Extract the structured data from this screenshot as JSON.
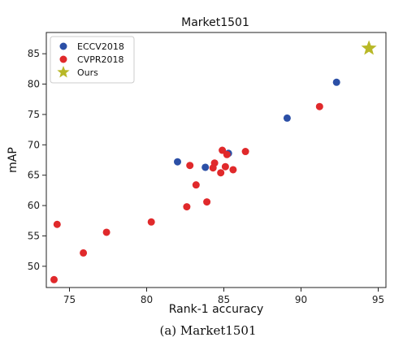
{
  "chart_data": {
    "type": "scatter",
    "title": "Market1501",
    "xlabel": "Rank-1 accuracy",
    "ylabel": "mAP",
    "xlim": [
      73.5,
      95.5
    ],
    "ylim": [
      46.5,
      88.5
    ],
    "xticks": [
      75,
      80,
      85,
      90,
      95
    ],
    "yticks": [
      50,
      55,
      60,
      65,
      70,
      75,
      80,
      85
    ],
    "grid": false,
    "legend_position": "top-left",
    "series": [
      {
        "name": "ECCV2018",
        "marker": "circle",
        "color": "#2b4fa6",
        "points": [
          [
            82.0,
            67.2
          ],
          [
            83.8,
            66.3
          ],
          [
            85.3,
            68.6
          ],
          [
            89.1,
            74.4
          ],
          [
            92.3,
            80.3
          ]
        ]
      },
      {
        "name": "CVPR2018",
        "marker": "circle",
        "color": "#e0292b",
        "points": [
          [
            74.0,
            47.8
          ],
          [
            74.2,
            56.9
          ],
          [
            75.9,
            52.2
          ],
          [
            77.4,
            55.6
          ],
          [
            80.3,
            57.3
          ],
          [
            82.6,
            59.8
          ],
          [
            82.8,
            66.6
          ],
          [
            83.2,
            63.4
          ],
          [
            83.9,
            60.6
          ],
          [
            84.3,
            66.2
          ],
          [
            84.4,
            67.0
          ],
          [
            84.8,
            65.4
          ],
          [
            84.9,
            69.1
          ],
          [
            85.1,
            66.4
          ],
          [
            85.2,
            68.4
          ],
          [
            85.6,
            65.9
          ],
          [
            86.4,
            68.9
          ],
          [
            91.2,
            76.3
          ]
        ]
      },
      {
        "name": "Ours",
        "marker": "star",
        "color": "#b8b827",
        "points": [
          [
            94.4,
            85.9
          ]
        ]
      }
    ]
  },
  "caption": "(a)  Market1501"
}
